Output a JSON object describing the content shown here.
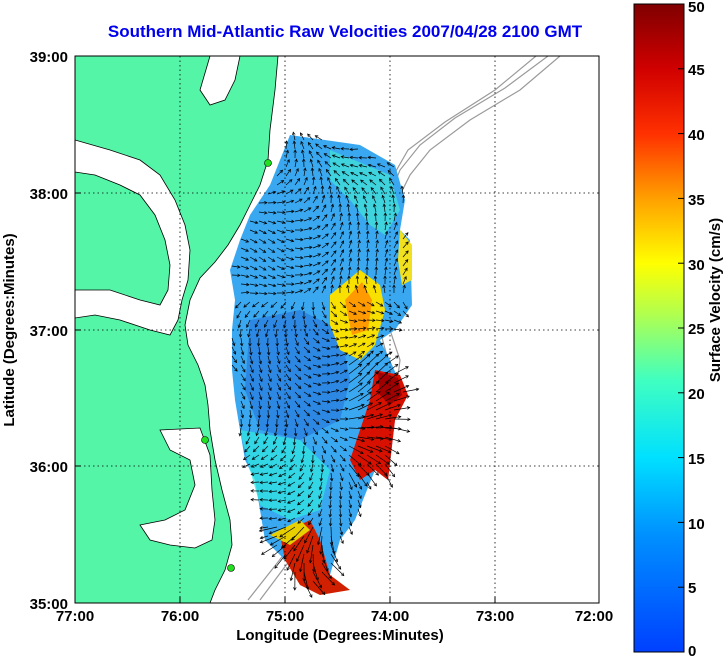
{
  "title": "Southern Mid-Atlantic Raw Velocities 2007/04/28 2100 GMT",
  "map": {
    "xlabel": "Longitude (Degrees:Minutes)",
    "ylabel": "Latitude (Degrees:Minutes)",
    "x_ticks": [
      "77:00",
      "76:00",
      "75:00",
      "74:00",
      "73:00",
      "72:00"
    ],
    "y_ticks": [
      "39:00",
      "38:00",
      "37:00",
      "36:00",
      "35:00"
    ],
    "xlim": [
      -77,
      -72
    ],
    "ylim": [
      35,
      39
    ],
    "grid": true,
    "land_color": "#55f5a8",
    "coast_color": "#000000",
    "bathymetry_color": "#9a9a9a"
  },
  "colorbar": {
    "label": "Surface Velocity (cm/s)",
    "ticks": [
      "50",
      "45",
      "40",
      "35",
      "30",
      "25",
      "20",
      "15",
      "10",
      "5",
      "0"
    ],
    "range": [
      0,
      50
    ],
    "colors": [
      "#0000ff",
      "#0080ff",
      "#00ffff",
      "#80ff80",
      "#ffff00",
      "#ff8000",
      "#ff0000",
      "#800000"
    ]
  }
}
